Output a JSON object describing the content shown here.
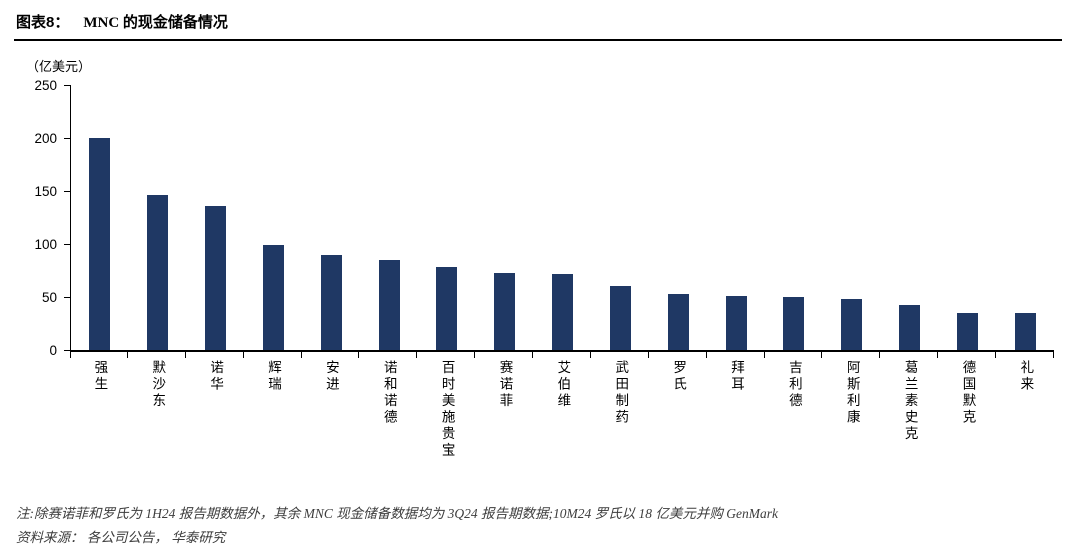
{
  "header": {
    "title_prefix": "图表8：",
    "title": "MNC 的现金储备情况"
  },
  "chart_data": {
    "type": "bar",
    "title": "MNC 的现金储备情况",
    "unit_label": "（亿美元）",
    "categories": [
      "强生",
      "默沙东",
      "诺华",
      "辉瑞",
      "安进",
      "诺和诺德",
      "百时美施贵宝",
      "赛诺菲",
      "艾伯维",
      "武田制药",
      "罗氏",
      "拜耳",
      "吉利德",
      "阿斯利康",
      "葛兰素史克",
      "德国默克",
      "礼来"
    ],
    "values": [
      200,
      146,
      136,
      99,
      90,
      85,
      78,
      73,
      72,
      60,
      53,
      51,
      50,
      48,
      42,
      35,
      35
    ],
    "xlabel": "",
    "ylabel": "亿美元",
    "ylim": [
      0,
      250
    ],
    "yticks": [
      0,
      50,
      100,
      150,
      200,
      250
    ],
    "grid": false,
    "legend": "none",
    "bar_color": "#1F3864"
  },
  "footer": {
    "note": "注:除赛诺菲和罗氏为 1H24 报告期数据外，其余 MNC 现金储备数据均为 3Q24 报告期数据;10M24 罗氏以 18 亿美元并购 GenMark",
    "source": "资料来源： 各公司公告， 华泰研究"
  }
}
